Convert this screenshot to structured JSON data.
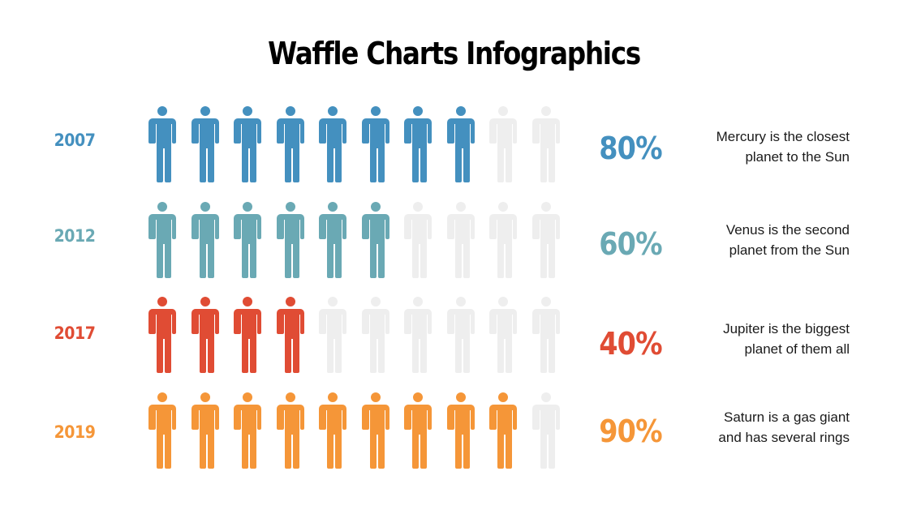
{
  "title": "Waffle Charts Infographics",
  "colors": {
    "empty": "#eeeeee",
    "row_2007": "#4490bf",
    "row_2012": "#6aa9b4",
    "row_2017": "#e04c34",
    "row_2019": "#f59638"
  },
  "rows": [
    {
      "year": "2007",
      "percent": "80%",
      "filled": 8,
      "total": 10,
      "color": "#4490bf",
      "desc_line1": "Mercury is the closest",
      "desc_line2": "planet to the Sun"
    },
    {
      "year": "2012",
      "percent": "60%",
      "filled": 6,
      "total": 10,
      "color": "#6aa9b4",
      "desc_line1": "Venus is the second",
      "desc_line2": "planet from the Sun"
    },
    {
      "year": "2017",
      "percent": "40%",
      "filled": 4,
      "total": 10,
      "color": "#e04c34",
      "desc_line1": "Jupiter is the biggest",
      "desc_line2": "planet of them all"
    },
    {
      "year": "2019",
      "percent": "90%",
      "filled": 9,
      "total": 10,
      "color": "#f59638",
      "desc_line1": "Saturn is a gas giant",
      "desc_line2": "and has several rings"
    }
  ],
  "chart_data": {
    "type": "waffle",
    "title": "Waffle Charts Infographics",
    "categories": [
      "2007",
      "2012",
      "2017",
      "2019"
    ],
    "values": [
      80,
      60,
      40,
      90
    ],
    "unit": "%",
    "icons_per_row": 10,
    "filled_icons": [
      8,
      6,
      4,
      9
    ],
    "icon": "person-icon",
    "annotations": [
      "Mercury is the closest planet to the Sun",
      "Venus is the second planet from the Sun",
      "Jupiter is the biggest planet of them all",
      "Saturn is a gas giant and has several rings"
    ],
    "series_colors": [
      "#4490bf",
      "#6aa9b4",
      "#e04c34",
      "#f59638"
    ],
    "empty_color": "#eeeeee"
  }
}
